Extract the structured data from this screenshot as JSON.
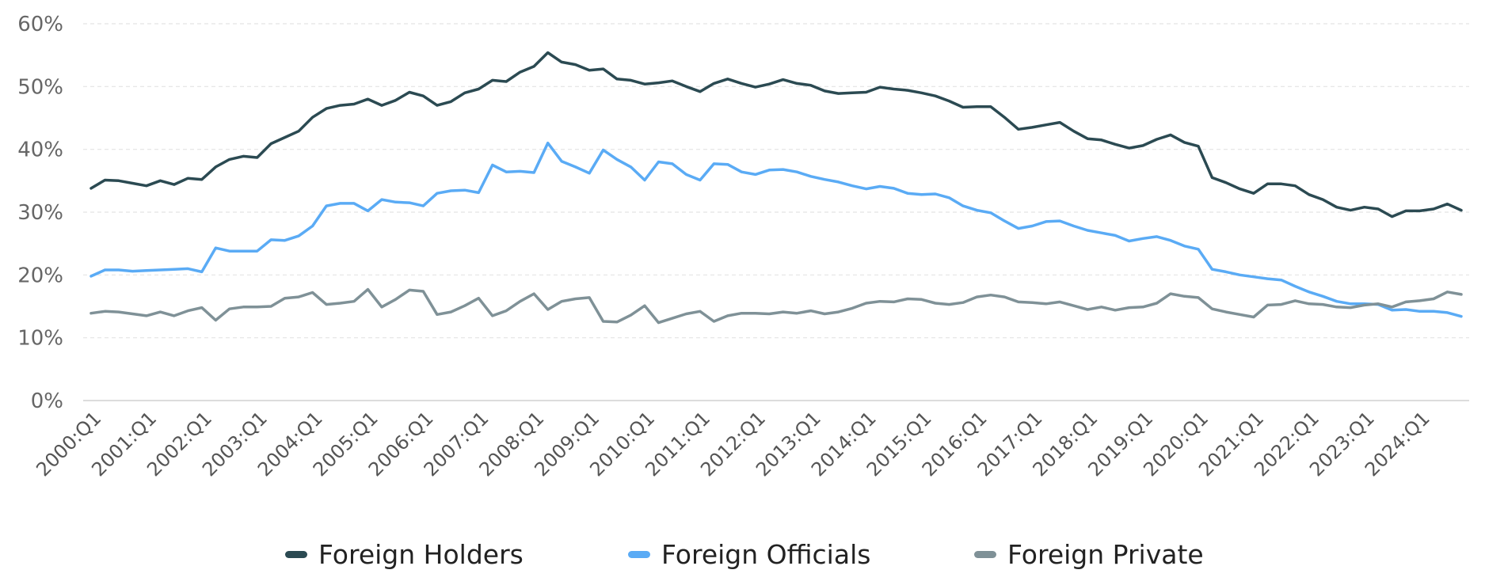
{
  "chart_data": {
    "type": "line",
    "title": "",
    "xlabel": "",
    "ylabel": "",
    "ylim": [
      0,
      60
    ],
    "y_ticks": [
      "0%",
      "10%",
      "20%",
      "30%",
      "40%",
      "50%",
      "60%"
    ],
    "x_tick_labels": [
      "2000:Q1",
      "2001:Q1",
      "2002:Q1",
      "2003:Q1",
      "2004:Q1",
      "2005:Q1",
      "2006:Q1",
      "2007:Q1",
      "2008:Q1",
      "2009:Q1",
      "2010:Q1",
      "2011:Q1",
      "2012:Q1",
      "2013:Q1",
      "2014:Q1",
      "2015:Q1",
      "2016:Q1",
      "2017:Q1",
      "2018:Q1",
      "2019:Q1",
      "2020:Q1",
      "2021:Q1",
      "2022:Q1",
      "2023:Q1",
      "2024:Q1"
    ],
    "x_start": "2000:Q1",
    "x_end": "2024:Q4",
    "grid": "horizontal dashed",
    "legend_position": "bottom",
    "series": [
      {
        "name": "Foreign Holders",
        "color": "#2b4a52",
        "values": [
          33.8,
          35.1,
          35.0,
          34.6,
          34.2,
          35.0,
          34.4,
          35.4,
          35.2,
          37.2,
          38.4,
          38.9,
          38.7,
          40.9,
          41.9,
          42.9,
          45.1,
          46.5,
          47.0,
          47.2,
          48.0,
          47.0,
          47.8,
          49.1,
          48.5,
          47.0,
          47.6,
          49.0,
          49.6,
          51.0,
          50.8,
          52.3,
          53.2,
          55.4,
          53.9,
          53.5,
          52.6,
          52.8,
          51.2,
          51.0,
          50.4,
          50.6,
          50.9,
          50.0,
          49.2,
          50.5,
          51.2,
          50.5,
          49.9,
          50.4,
          51.1,
          50.5,
          50.2,
          49.3,
          48.9,
          49.0,
          49.1,
          49.9,
          49.6,
          49.4,
          49.0,
          48.5,
          47.7,
          46.7,
          46.8,
          46.8,
          45.1,
          43.2,
          43.5,
          43.9,
          44.3,
          42.9,
          41.7,
          41.5,
          40.8,
          40.2,
          40.6,
          41.6,
          42.3,
          41.1,
          40.5,
          35.5,
          34.7,
          33.7,
          33.0,
          34.5,
          34.5,
          34.2,
          32.8,
          32.0,
          30.8,
          30.3,
          30.8,
          30.5,
          29.3,
          30.2,
          30.2,
          30.5,
          31.3,
          30.3
        ]
      },
      {
        "name": "Foreign Officials",
        "color": "#5aabf5",
        "values": [
          19.8,
          20.8,
          20.8,
          20.6,
          20.7,
          20.8,
          20.9,
          21.0,
          20.5,
          24.3,
          23.8,
          23.8,
          23.8,
          25.6,
          25.5,
          26.2,
          27.8,
          31.0,
          31.4,
          31.4,
          30.2,
          32.0,
          31.6,
          31.5,
          31.0,
          33.0,
          33.4,
          33.5,
          33.1,
          37.5,
          36.4,
          36.5,
          36.3,
          41.0,
          38.1,
          37.2,
          36.2,
          39.9,
          38.4,
          37.2,
          35.1,
          38.0,
          37.7,
          36.0,
          35.1,
          37.7,
          37.6,
          36.4,
          36.0,
          36.7,
          36.8,
          36.4,
          35.7,
          35.2,
          34.8,
          34.2,
          33.7,
          34.1,
          33.8,
          33.0,
          32.8,
          32.9,
          32.3,
          31.0,
          30.3,
          29.9,
          28.6,
          27.4,
          27.8,
          28.5,
          28.6,
          27.8,
          27.1,
          26.7,
          26.3,
          25.4,
          25.8,
          26.1,
          25.5,
          24.6,
          24.1,
          20.9,
          20.5,
          20.0,
          19.7,
          19.4,
          19.2,
          18.2,
          17.3,
          16.6,
          15.8,
          15.4,
          15.4,
          15.3,
          14.4,
          14.5,
          14.2,
          14.2,
          14.0,
          13.4
        ]
      },
      {
        "name": "Foreign Private",
        "color": "#7f9197",
        "values": [
          13.9,
          14.2,
          14.1,
          13.8,
          13.5,
          14.1,
          13.5,
          14.3,
          14.8,
          12.8,
          14.6,
          14.9,
          14.9,
          15.0,
          16.3,
          16.5,
          17.2,
          15.3,
          15.5,
          15.8,
          17.7,
          14.9,
          16.1,
          17.6,
          17.4,
          13.7,
          14.1,
          15.1,
          16.3,
          13.5,
          14.3,
          15.8,
          17.0,
          14.5,
          15.8,
          16.2,
          16.4,
          12.6,
          12.5,
          13.6,
          15.1,
          12.4,
          13.1,
          13.8,
          14.2,
          12.6,
          13.5,
          13.9,
          13.9,
          13.8,
          14.1,
          13.9,
          14.3,
          13.8,
          14.1,
          14.7,
          15.5,
          15.8,
          15.7,
          16.2,
          16.1,
          15.5,
          15.3,
          15.6,
          16.5,
          16.8,
          16.5,
          15.7,
          15.6,
          15.4,
          15.7,
          15.1,
          14.5,
          14.9,
          14.4,
          14.8,
          14.9,
          15.5,
          17.0,
          16.6,
          16.4,
          14.6,
          14.1,
          13.7,
          13.3,
          15.2,
          15.3,
          15.9,
          15.4,
          15.3,
          14.9,
          14.8,
          15.2,
          15.4,
          14.9,
          15.7,
          15.9,
          16.2,
          17.3,
          16.9
        ]
      }
    ]
  }
}
